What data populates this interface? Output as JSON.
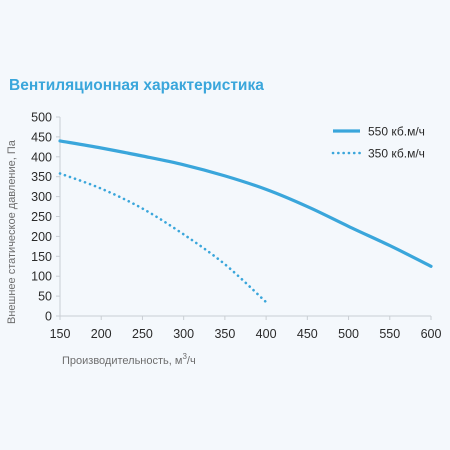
{
  "chart_data": {
    "type": "line",
    "title": "Вентиляционная характеристика",
    "xlabel": "Производительность, м",
    "xlabel_sup": "3",
    "xlabel_suffix": "/ч",
    "ylabel": "Внешнее статическое давление, Па",
    "xlim": [
      150,
      600
    ],
    "ylim": [
      0,
      500
    ],
    "x_ticks": [
      150,
      200,
      250,
      300,
      350,
      400,
      450,
      500,
      550,
      600
    ],
    "y_ticks": [
      0,
      50,
      100,
      150,
      200,
      250,
      300,
      350,
      400,
      450,
      500
    ],
    "grid": false,
    "legend_position": "top-right",
    "series": [
      {
        "name": "550 кб.м/ч",
        "style": "solid",
        "color": "#3aa6db",
        "x": [
          150,
          200,
          250,
          300,
          350,
          400,
          450,
          500,
          550,
          600
        ],
        "y": [
          440,
          422,
          402,
          380,
          352,
          318,
          275,
          225,
          177,
          125
        ]
      },
      {
        "name": "350 кб.м/ч",
        "style": "dotted",
        "color": "#3aa6db",
        "x": [
          150,
          200,
          250,
          300,
          350,
          400
        ],
        "y": [
          358,
          320,
          270,
          205,
          130,
          35
        ]
      }
    ]
  }
}
